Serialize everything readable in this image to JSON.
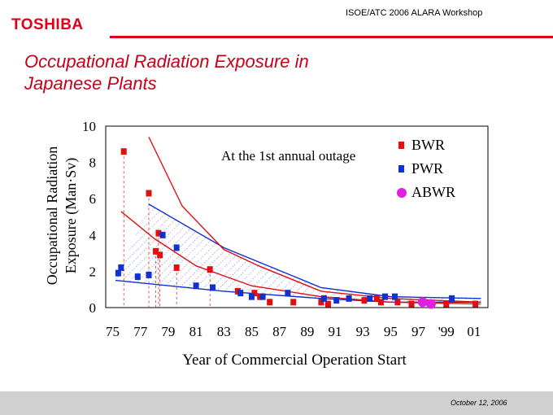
{
  "header": {
    "logo_text": "TOSHIBA",
    "workshop": "ISOE/ATC 2006 ALARA Workshop",
    "title_line1": "Occupational Radiation Exposure in",
    "title_line2": "Japanese Plants",
    "accent_color": "#e0001a"
  },
  "footer": {
    "date": "October 12, 2006"
  },
  "chart_data": {
    "type": "scatter",
    "annotation": "At the 1st annual outage",
    "xlabel": "Year of Commercial Operation Start",
    "ylabel_line1": "Occupational Radiation",
    "ylabel_line2": "Exposure (Man·Sv)",
    "x_tick_labels": [
      "75",
      "77",
      "79",
      "81",
      "83",
      "85",
      "87",
      "89",
      "91",
      "93",
      "95",
      "97",
      "'99",
      "01"
    ],
    "y_tick_labels": [
      "0",
      "2",
      "4",
      "6",
      "8",
      "10"
    ],
    "xlim": [
      1974.5,
      2002
    ],
    "ylim": [
      0,
      10
    ],
    "colors": {
      "BWR": "#e01010",
      "PWR": "#1030d0",
      "ABWR": "#e020e0"
    },
    "series": [
      {
        "name": "BWR",
        "points": [
          [
            1975.8,
            8.6
          ],
          [
            1977.6,
            6.3
          ],
          [
            1978.3,
            4.1
          ],
          [
            1978.1,
            3.1
          ],
          [
            1978.4,
            2.9
          ],
          [
            1979.6,
            2.2
          ],
          [
            1982.0,
            2.1
          ],
          [
            1984.0,
            0.9
          ],
          [
            1985.2,
            0.8
          ],
          [
            1985.6,
            0.6
          ],
          [
            1986.3,
            0.3
          ],
          [
            1988.0,
            0.3
          ],
          [
            1990.0,
            0.3
          ],
          [
            1990.5,
            0.2
          ],
          [
            1993.1,
            0.4
          ],
          [
            1994.0,
            0.5
          ],
          [
            1994.3,
            0.3
          ],
          [
            1995.5,
            0.3
          ],
          [
            1996.5,
            0.2
          ],
          [
            1999.0,
            0.2
          ],
          [
            2001.1,
            0.2
          ]
        ]
      },
      {
        "name": "PWR",
        "points": [
          [
            1975.4,
            1.9
          ],
          [
            1975.6,
            2.2
          ],
          [
            1976.8,
            1.7
          ],
          [
            1977.6,
            1.8
          ],
          [
            1978.6,
            4.0
          ],
          [
            1979.6,
            3.3
          ],
          [
            1981.0,
            1.2
          ],
          [
            1982.2,
            1.1
          ],
          [
            1984.2,
            0.8
          ],
          [
            1985.0,
            0.6
          ],
          [
            1985.8,
            0.6
          ],
          [
            1987.6,
            0.8
          ],
          [
            1990.2,
            0.5
          ],
          [
            1991.1,
            0.4
          ],
          [
            1992.0,
            0.5
          ],
          [
            1993.5,
            0.5
          ],
          [
            1994.6,
            0.6
          ],
          [
            1995.3,
            0.6
          ],
          [
            1999.4,
            0.5
          ]
        ]
      },
      {
        "name": "ABWR",
        "points": [
          [
            1997.3,
            0.3
          ],
          [
            1997.9,
            0.2
          ]
        ]
      }
    ],
    "bwr_envelope_upper": [
      [
        1977.6,
        9.4
      ],
      [
        1980.0,
        5.6
      ],
      [
        1983.0,
        3.2
      ],
      [
        1985.5,
        2.3
      ],
      [
        1990.0,
        0.9
      ],
      [
        1995.0,
        0.5
      ],
      [
        2001.5,
        0.3
      ]
    ],
    "bwr_envelope_lower": [
      [
        1975.6,
        5.3
      ],
      [
        1978.0,
        3.8
      ],
      [
        1981.0,
        2.3
      ],
      [
        1985.0,
        1.2
      ],
      [
        1990.0,
        0.6
      ],
      [
        1995.0,
        0.3
      ],
      [
        2001.5,
        0.2
      ]
    ],
    "pwr_envelope_upper": [
      [
        1977.6,
        5.7
      ],
      [
        1983.0,
        3.3
      ],
      [
        1990.0,
        1.1
      ],
      [
        1995.0,
        0.6
      ],
      [
        2001.5,
        0.5
      ]
    ],
    "pwr_envelope_lower": [
      [
        1975.2,
        1.5
      ],
      [
        1983.0,
        0.9
      ],
      [
        1990.0,
        0.5
      ],
      [
        1995.0,
        0.3
      ],
      [
        2001.5,
        0.3
      ]
    ]
  }
}
